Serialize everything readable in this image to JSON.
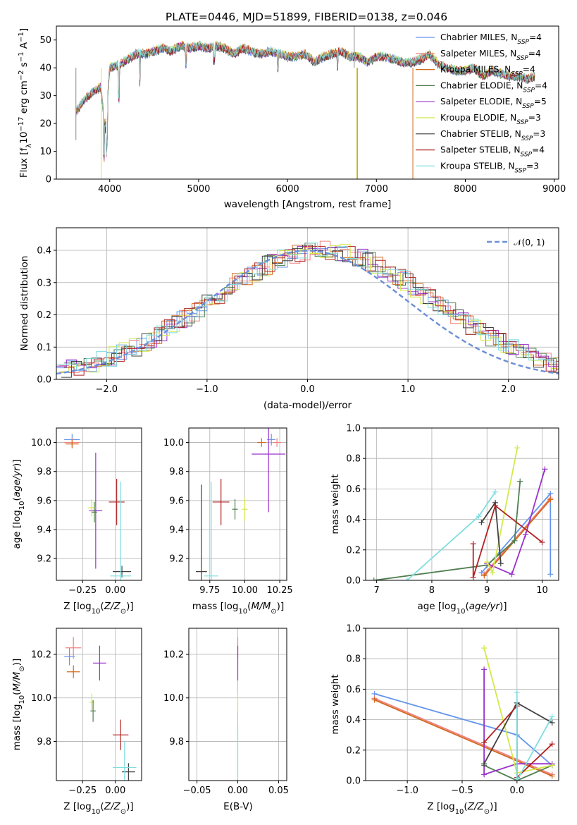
{
  "title": "PLATE=0446, MJD=51899, FIBERID=0138, z=0.046",
  "colors": {
    "Chabrier MILES": "#6495ed",
    "Salpeter MILES": "#f08080",
    "Kroupa MILES": "#d2691e",
    "Chabrier ELODIE": "#4f7f4f",
    "Salpeter ELODIE": "#9932cc",
    "Kroupa ELODIE": "#d4e84a",
    "Chabrier STELIB": "#404040",
    "Salpeter STELIB": "#b22222",
    "Kroupa STELIB": "#7fdde0"
  },
  "legend1": [
    {
      "label": "Chabrier MILES, N",
      "sub": "SSP",
      "suffix": "=4",
      "color": "#6495ed"
    },
    {
      "label": "Salpeter MILES, N",
      "sub": "SSP",
      "suffix": "=4",
      "color": "#f08080"
    },
    {
      "label": "Kroupa MILES, N",
      "sub": "SSP",
      "suffix": "=4",
      "color": "#d2691e"
    },
    {
      "label": "Chabrier ELODIE, N",
      "sub": "SSP",
      "suffix": "=4",
      "color": "#4f7f4f"
    },
    {
      "label": "Salpeter ELODIE, N",
      "sub": "SSP",
      "suffix": "=5",
      "color": "#9932cc"
    },
    {
      "label": "Kroupa ELODIE, N",
      "sub": "SSP",
      "suffix": "=3",
      "color": "#d4e84a"
    },
    {
      "label": "Chabrier STELIB, N",
      "sub": "SSP",
      "suffix": "=3",
      "color": "#404040"
    },
    {
      "label": "Salpeter STELIB, N",
      "sub": "SSP",
      "suffix": "=4",
      "color": "#b22222"
    },
    {
      "label": "Kroupa STELIB, N",
      "sub": "SSP",
      "suffix": "=3",
      "color": "#7fdde0"
    }
  ],
  "legend2": {
    "label": "𝒩(0, 1)",
    "color": "#6a8fd8"
  },
  "chart_data": [
    {
      "id": "spectrum",
      "type": "line",
      "xlabel": "wavelength [Angstrom, rest frame]",
      "ylabel": "Flux [f_λ 10^-17 erg cm^-2 s^-1 A^-1]",
      "xlim": [
        3400,
        9050
      ],
      "ylim": [
        0,
        55
      ],
      "xticks": [
        4000,
        5000,
        6000,
        7000,
        8000,
        9000
      ],
      "yticks": [
        0,
        10,
        20,
        30,
        40,
        50
      ],
      "x": [
        3620,
        3700,
        3800,
        3900,
        3950,
        4000,
        4100,
        4200,
        4300,
        4400,
        4500,
        4600,
        4700,
        4800,
        4900,
        5000,
        5100,
        5200,
        5300,
        5400,
        5500,
        5600,
        5700,
        5800,
        5900,
        6000,
        6100,
        6200,
        6300,
        6400,
        6500,
        6600,
        6700,
        6800,
        6900,
        7000,
        7100,
        7200,
        7300,
        7400,
        7500,
        7600,
        7700,
        7800,
        7900,
        8000,
        8100,
        8200,
        8300,
        8400,
        8500,
        8600,
        8700,
        8780
      ],
      "y": [
        24,
        28,
        31,
        33,
        18,
        40,
        41,
        43,
        45,
        45,
        46,
        47,
        46,
        48,
        47,
        48,
        47,
        48,
        47,
        45,
        47,
        46,
        45,
        46,
        45,
        44,
        44,
        45,
        42,
        44,
        45,
        46,
        44,
        44,
        42,
        44,
        44,
        43,
        42,
        42,
        43,
        45,
        41,
        40,
        39,
        39,
        40,
        37,
        39,
        38,
        37,
        37,
        36,
        37
      ]
    },
    {
      "id": "residuals",
      "type": "line",
      "xlabel": "(data-model)/error",
      "ylabel": "Normed distribution",
      "xlim": [
        -2.5,
        2.5
      ],
      "ylim": [
        0,
        0.47
      ],
      "xticks": [
        -2,
        -1,
        0,
        1,
        2
      ],
      "yticks": [
        0.0,
        0.1,
        0.2,
        0.3,
        0.4
      ],
      "series_name": "𝒩(0, 1)",
      "x": [
        -2.5,
        -2.0,
        -1.5,
        -1.0,
        -0.5,
        0.0,
        0.5,
        1.0,
        1.5,
        2.0,
        2.5
      ],
      "y": [
        0.018,
        0.054,
        0.13,
        0.242,
        0.352,
        0.399,
        0.352,
        0.242,
        0.13,
        0.054,
        0.018
      ]
    },
    {
      "id": "age-vs-Z",
      "type": "scatter",
      "xlabel": "Z [log10(Z/Z⊙)]",
      "ylabel": "age [log10(age/yr)]",
      "xlim": [
        -0.45,
        0.2
      ],
      "ylim": [
        9.05,
        10.1
      ],
      "xticks": [
        -0.25,
        0.0
      ],
      "yticks": [
        9.2,
        9.4,
        9.6,
        9.8,
        10.0
      ],
      "points": [
        {
          "model": "Chabrier MILES",
          "x": -0.33,
          "y": 10.02,
          "xerr": 0.06,
          "yerr": 0.04
        },
        {
          "model": "Salpeter MILES",
          "x": -0.33,
          "y": 10.0,
          "xerr": 0.06,
          "yerr": 0.03
        },
        {
          "model": "Kroupa MILES",
          "x": -0.33,
          "y": 9.99,
          "xerr": 0.05,
          "yerr": 0.03
        },
        {
          "model": "Salpeter ELODIE",
          "x": -0.15,
          "y": 9.53,
          "xerr": 0.05,
          "yerr": 0.4
        },
        {
          "model": "Kroupa ELODIE",
          "x": -0.18,
          "y": 9.55,
          "xerr": 0.03,
          "yerr": 0.06
        },
        {
          "model": "Chabrier ELODIE",
          "x": -0.16,
          "y": 9.52,
          "xerr": 0.02,
          "yerr": 0.07
        },
        {
          "model": "Salpeter STELIB",
          "x": 0.01,
          "y": 9.59,
          "xerr": 0.06,
          "yerr": 0.16
        },
        {
          "model": "Chabrier STELIB",
          "x": 0.05,
          "y": 9.11,
          "xerr": 0.07,
          "yerr": 0.04
        },
        {
          "model": "Kroupa STELIB",
          "x": 0.04,
          "y": 9.08,
          "xerr": 0.08,
          "yerr": 0.65
        }
      ]
    },
    {
      "id": "age-vs-mass",
      "type": "scatter",
      "xlabel": "mass [log10(M/M⊙)]",
      "ylabel": "",
      "xlim": [
        9.6,
        10.3
      ],
      "ylim": [
        9.05,
        10.1
      ],
      "xticks": [
        9.75,
        10.0,
        10.25
      ],
      "yticks": [
        9.2,
        9.4,
        9.6,
        9.8,
        10.0
      ],
      "points": [
        {
          "model": "Chabrier MILES",
          "x": 10.19,
          "y": 10.02,
          "xerr": 0.03,
          "yerr": 0.04
        },
        {
          "model": "Salpeter MILES",
          "x": 10.23,
          "y": 10.0,
          "xerr": 0.03,
          "yerr": 0.03
        },
        {
          "model": "Kroupa MILES",
          "x": 10.12,
          "y": 10.0,
          "xerr": 0.03,
          "yerr": 0.03
        },
        {
          "model": "Salpeter ELODIE",
          "x": 10.17,
          "y": 9.92,
          "xerr": 0.12,
          "yerr": 0.4
        },
        {
          "model": "Kroupa ELODIE",
          "x": 10.0,
          "y": 9.54,
          "xerr": 0.02,
          "yerr": 0.08
        },
        {
          "model": "Chabrier ELODIE",
          "x": 9.93,
          "y": 9.54,
          "xerr": 0.02,
          "yerr": 0.07
        },
        {
          "model": "Salpeter STELIB",
          "x": 9.83,
          "y": 9.59,
          "xerr": 0.06,
          "yerr": 0.16
        },
        {
          "model": "Chabrier STELIB",
          "x": 9.69,
          "y": 9.11,
          "xerr": 0.04,
          "yerr": 0.6
        },
        {
          "model": "Kroupa STELIB",
          "x": 9.76,
          "y": 9.08,
          "xerr": 0.05,
          "yerr": 0.65
        }
      ]
    },
    {
      "id": "massweight-vs-age",
      "type": "line",
      "xlabel": "age [log10(age/yr)]",
      "ylabel": "mass weight",
      "xlim": [
        6.8,
        10.3
      ],
      "ylim": [
        0,
        1
      ],
      "xticks": [
        7,
        8,
        9,
        10
      ],
      "yticks": [
        0.0,
        0.2,
        0.4,
        0.6,
        0.8,
        1.0
      ],
      "series": [
        {
          "model": "Chabrier MILES",
          "x": [
            8.9,
            10.15,
            10.15
          ],
          "y": [
            0.05,
            0.57,
            0.04
          ]
        },
        {
          "model": "Salpeter MILES",
          "x": [
            8.95,
            10.15
          ],
          "y": [
            0.04,
            0.54
          ]
        },
        {
          "model": "Kroupa MILES",
          "x": [
            8.95,
            10.15
          ],
          "y": [
            0.03,
            0.53
          ]
        },
        {
          "model": "Chabrier ELODIE",
          "x": [
            6.95,
            9.0,
            9.5,
            9.6
          ],
          "y": [
            0.0,
            0.1,
            0.26,
            0.65
          ]
        },
        {
          "model": "Salpeter ELODIE",
          "x": [
            9.0,
            9.45,
            9.7,
            10.05
          ],
          "y": [
            0.11,
            0.04,
            0.3,
            0.73
          ]
        },
        {
          "model": "Kroupa ELODIE",
          "x": [
            9.0,
            9.1,
            9.55
          ],
          "y": [
            0.12,
            0.05,
            0.87
          ]
        },
        {
          "model": "Chabrier STELIB",
          "x": [
            8.9,
            9.15,
            9.25
          ],
          "y": [
            0.38,
            0.51,
            0.11
          ]
        },
        {
          "model": "Salpeter STELIB",
          "x": [
            8.75,
            8.75,
            9.15,
            10.0
          ],
          "y": [
            0.24,
            0.02,
            0.49,
            0.25
          ]
        },
        {
          "model": "Kroupa STELIB",
          "x": [
            7.55,
            8.85,
            9.15
          ],
          "y": [
            0.0,
            0.42,
            0.58
          ]
        }
      ]
    },
    {
      "id": "mass-vs-Z",
      "type": "scatter",
      "xlabel": "Z [log10(Z/Z⊙)]",
      "ylabel": "mass [log10(M/M⊙)]",
      "xlim": [
        -0.45,
        0.2
      ],
      "ylim": [
        9.62,
        10.32
      ],
      "xticks": [
        -0.25,
        0.0
      ],
      "yticks": [
        9.8,
        10.0,
        10.2
      ],
      "points": [
        {
          "model": "Chabrier MILES",
          "x": -0.35,
          "y": 10.19,
          "xerr": 0.04,
          "yerr": 0.04
        },
        {
          "model": "Salpeter MILES",
          "x": -0.32,
          "y": 10.23,
          "xerr": 0.06,
          "yerr": 0.05
        },
        {
          "model": "Kroupa MILES",
          "x": -0.32,
          "y": 10.12,
          "xerr": 0.05,
          "yerr": 0.03
        },
        {
          "model": "Salpeter ELODIE",
          "x": -0.12,
          "y": 10.16,
          "xerr": 0.05,
          "yerr": 0.08
        },
        {
          "model": "Kroupa ELODIE",
          "x": -0.18,
          "y": 9.98,
          "xerr": 0.02,
          "yerr": 0.04
        },
        {
          "model": "Chabrier ELODIE",
          "x": -0.17,
          "y": 9.94,
          "xerr": 0.02,
          "yerr": 0.05
        },
        {
          "model": "Salpeter STELIB",
          "x": 0.04,
          "y": 9.83,
          "xerr": 0.06,
          "yerr": 0.07
        },
        {
          "model": "Chabrier STELIB",
          "x": 0.1,
          "y": 9.66,
          "xerr": 0.05,
          "yerr": 0.04
        },
        {
          "model": "Kroupa STELIB",
          "x": 0.07,
          "y": 9.68,
          "xerr": 0.09,
          "yerr": 0.12
        }
      ]
    },
    {
      "id": "mass-vs-EBV",
      "type": "scatter",
      "xlabel": "E(B-V)",
      "ylabel": "",
      "xlim": [
        -0.06,
        0.06
      ],
      "ylim": [
        9.62,
        10.32
      ],
      "xticks": [
        -0.05,
        0.0,
        0.05
      ],
      "yticks": [
        9.8,
        10.0,
        10.2
      ],
      "points": [
        {
          "model": "Salpeter MILES",
          "x": 0.0,
          "y": 10.23,
          "xerr": 0,
          "yerr": 0.05
        },
        {
          "model": "Salpeter ELODIE",
          "x": 0.0,
          "y": 10.16,
          "xerr": 0,
          "yerr": 0.08
        },
        {
          "model": "Kroupa ELODIE",
          "x": 0.0,
          "y": 9.98,
          "xerr": 0,
          "yerr": 0.04
        },
        {
          "model": "Kroupa STELIB",
          "x": 0.0,
          "y": 9.75,
          "xerr": 0,
          "yerr": 0.13
        }
      ]
    },
    {
      "id": "massweight-vs-Z",
      "type": "line",
      "xlabel": "Z [log10(Z/Z⊙)]",
      "ylabel": "mass weight",
      "xlim": [
        -1.38,
        0.38
      ],
      "ylim": [
        0,
        1
      ],
      "xticks": [
        -1.0,
        -0.5,
        0.0
      ],
      "yticks": [
        0.0,
        0.2,
        0.4,
        0.6,
        0.8,
        1.0
      ],
      "series": [
        {
          "model": "Chabrier MILES",
          "x": [
            -1.3,
            0.0,
            0.32
          ],
          "y": [
            0.57,
            0.3,
            0.1
          ]
        },
        {
          "model": "Salpeter MILES",
          "x": [
            -1.3,
            0.32
          ],
          "y": [
            0.54,
            0.04
          ]
        },
        {
          "model": "Kroupa MILES",
          "x": [
            -1.3,
            0.32
          ],
          "y": [
            0.53,
            0.03
          ]
        },
        {
          "model": "Chabrier ELODIE",
          "x": [
            -0.3,
            0.0,
            0.32
          ],
          "y": [
            0.1,
            0.0,
            0.1
          ]
        },
        {
          "model": "Salpeter ELODIE",
          "x": [
            -0.3,
            -0.3,
            0.0,
            0.32
          ],
          "y": [
            0.73,
            0.04,
            0.11,
            0.11
          ]
        },
        {
          "model": "Kroupa ELODIE",
          "x": [
            -0.3,
            0.0,
            0.32
          ],
          "y": [
            0.87,
            0.05,
            0.1
          ]
        },
        {
          "model": "Chabrier STELIB",
          "x": [
            -0.3,
            0.0,
            0.32
          ],
          "y": [
            0.11,
            0.51,
            0.38
          ]
        },
        {
          "model": "Salpeter STELIB",
          "x": [
            -0.3,
            0.0,
            0.0,
            0.32
          ],
          "y": [
            0.25,
            0.49,
            0.02,
            0.24
          ]
        },
        {
          "model": "Kroupa STELIB",
          "x": [
            0.0,
            0.0,
            0.32
          ],
          "y": [
            0.58,
            0.0,
            0.42
          ]
        }
      ]
    }
  ]
}
